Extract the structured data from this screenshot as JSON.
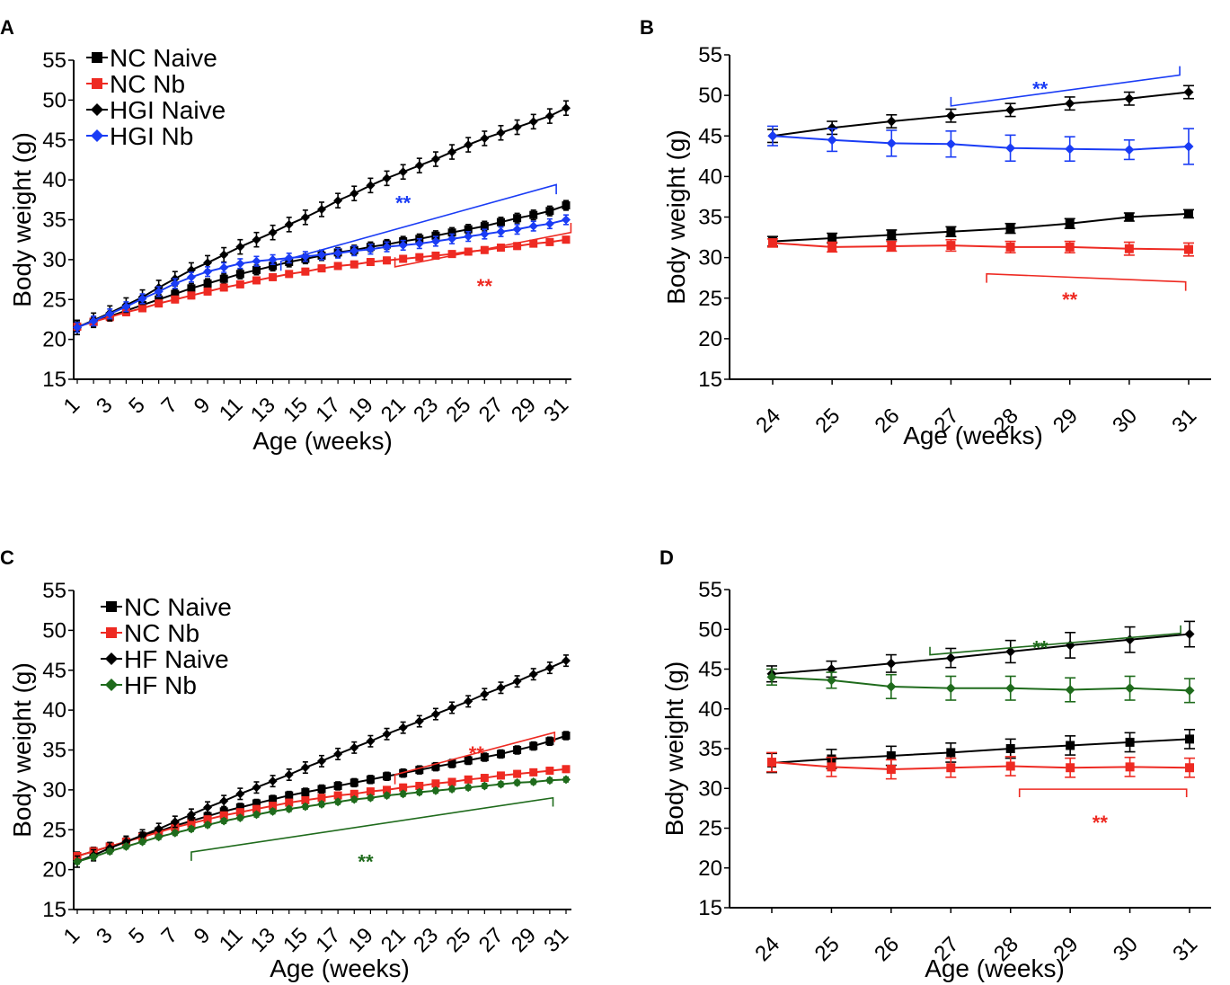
{
  "chart_data": [
    {
      "id": "A",
      "type": "line",
      "panel_label": "A",
      "xlabel": "Age (weeks)",
      "ylabel": "Body weight (g)",
      "ylim": [
        15,
        55
      ],
      "yticks": [
        15,
        20,
        25,
        30,
        35,
        40,
        45,
        50,
        55
      ],
      "xlim": [
        1,
        31
      ],
      "xticks": [
        1,
        3,
        5,
        7,
        9,
        11,
        13,
        15,
        17,
        19,
        21,
        23,
        25,
        27,
        29,
        31
      ],
      "legend": [
        "NC Naive",
        "NC Nb",
        "HGI Naive",
        "HGI Nb"
      ],
      "series": [
        {
          "name": "NC Naive",
          "color": "#000000",
          "marker": "square",
          "x_start": 1,
          "values": [
            21.6,
            22.2,
            22.9,
            23.6,
            24.3,
            25.0,
            25.7,
            26.4,
            27.0,
            27.6,
            28.2,
            28.7,
            29.2,
            29.7,
            30.1,
            30.5,
            30.9,
            31.2,
            31.6,
            31.9,
            32.3,
            32.6,
            33.0,
            33.4,
            33.8,
            34.2,
            34.7,
            35.2,
            35.6,
            36.1,
            36.8
          ],
          "err": 0.6
        },
        {
          "name": "NC Nb",
          "color": "#ee2a22",
          "marker": "square",
          "x_start": 1,
          "values": [
            21.6,
            22.2,
            22.8,
            23.4,
            23.9,
            24.5,
            25.0,
            25.5,
            26.0,
            26.5,
            26.9,
            27.4,
            27.8,
            28.2,
            28.5,
            28.9,
            29.2,
            29.4,
            29.7,
            29.9,
            30.1,
            30.3,
            30.5,
            30.7,
            31.0,
            31.2,
            31.5,
            31.7,
            32.0,
            32.2,
            32.5
          ],
          "err": 0.4
        },
        {
          "name": "HGI Naive",
          "color": "#000000",
          "marker": "diamond",
          "x_start": 1,
          "values": [
            21.5,
            22.4,
            23.3,
            24.3,
            25.3,
            26.5,
            27.6,
            28.7,
            29.6,
            30.6,
            31.6,
            32.5,
            33.4,
            34.4,
            35.3,
            36.3,
            37.4,
            38.3,
            39.3,
            40.2,
            41.0,
            41.8,
            42.6,
            43.5,
            44.4,
            45.2,
            45.9,
            46.6,
            47.3,
            48.0,
            49.0
          ],
          "err": 0.9
        },
        {
          "name": "HGI Nb",
          "color": "#1a3cf5",
          "marker": "diamond",
          "x_start": 1,
          "values": [
            21.5,
            22.3,
            23.2,
            24.1,
            25.1,
            26.0,
            27.0,
            27.8,
            28.5,
            29.0,
            29.5,
            29.8,
            30.0,
            30.2,
            30.4,
            30.6,
            30.8,
            31.1,
            31.3,
            31.6,
            31.8,
            32.0,
            32.3,
            32.6,
            32.9,
            33.2,
            33.5,
            33.8,
            34.2,
            34.5,
            35.0
          ],
          "err": 0.6
        }
      ],
      "annotations": [
        {
          "text": "**",
          "color": "#1a3cf5",
          "bracket": {
            "x1": 13.5,
            "x2": 30.4,
            "y_start": 29.8,
            "y_end": 39.4,
            "tick": 1.2
          },
          "label_at": [
            21,
            37.8
          ]
        },
        {
          "text": "**",
          "color": "#ee2a22",
          "bracket": {
            "x1": 20.5,
            "x2": 31.3,
            "y_start": 29.1,
            "y_end": 33.4,
            "tick": -1.2
          },
          "label_at": [
            26,
            27.4
          ]
        }
      ]
    },
    {
      "id": "B",
      "type": "line",
      "panel_label": "B",
      "xlabel": "Age (weeks)",
      "ylabel": "Body weight (g)",
      "ylim": [
        15,
        55
      ],
      "yticks": [
        15,
        20,
        25,
        30,
        35,
        40,
        45,
        50,
        55
      ],
      "categories": [
        "24",
        "25",
        "26",
        "27",
        "28",
        "29",
        "30",
        "31"
      ],
      "series": [
        {
          "name": "HGI Naive",
          "color": "#000000",
          "marker": "diamond",
          "values": [
            45.0,
            46.0,
            46.8,
            47.5,
            48.2,
            49.0,
            49.6,
            50.4
          ],
          "err": [
            0.8,
            0.8,
            0.8,
            0.8,
            0.8,
            0.8,
            0.8,
            0.8
          ]
        },
        {
          "name": "HGI Nb",
          "color": "#1a3cf5",
          "marker": "diamond",
          "values": [
            45.0,
            44.5,
            44.1,
            44.0,
            43.5,
            43.4,
            43.3,
            43.7
          ],
          "err": [
            1.2,
            1.4,
            1.6,
            1.6,
            1.6,
            1.5,
            1.2,
            2.2
          ]
        },
        {
          "name": "NC Naive",
          "color": "#000000",
          "marker": "square",
          "values": [
            32.0,
            32.4,
            32.8,
            33.2,
            33.6,
            34.2,
            35.0,
            35.4
          ],
          "err": [
            0.6,
            0.6,
            0.6,
            0.6,
            0.6,
            0.6,
            0.5,
            0.5
          ]
        },
        {
          "name": "NC Nb",
          "color": "#ee2a22",
          "marker": "square",
          "values": [
            31.8,
            31.3,
            31.4,
            31.5,
            31.3,
            31.3,
            31.1,
            31.0
          ],
          "err": [
            0.5,
            0.6,
            0.6,
            0.7,
            0.7,
            0.7,
            0.8,
            0.8
          ]
        }
      ],
      "annotations": [
        {
          "text": "**",
          "color": "#1a3cf5",
          "bracket": {
            "x1": 3.0,
            "x2": 6.85,
            "y_start": 48.7,
            "y_end": 52.5,
            "tick": -1.1
          },
          "label_at": [
            4.5,
            51.5
          ]
        },
        {
          "text": "**",
          "color": "#ee2a22",
          "bracket": {
            "x1": 3.6,
            "x2": 6.95,
            "y_start": 28.0,
            "y_end": 27.0,
            "tick": 1.1
          },
          "label_at": [
            5.0,
            25.5
          ]
        }
      ]
    },
    {
      "id": "C",
      "type": "line",
      "panel_label": "C",
      "xlabel": "Age (weeks)",
      "ylabel": "Body weight (g)",
      "ylim": [
        15,
        55
      ],
      "yticks": [
        15,
        20,
        25,
        30,
        35,
        40,
        45,
        50,
        55
      ],
      "xlim": [
        1,
        31
      ],
      "xticks": [
        1,
        3,
        5,
        7,
        9,
        11,
        13,
        15,
        17,
        19,
        21,
        23,
        25,
        27,
        29,
        31
      ],
      "legend": [
        "NC Naive",
        "NC Nb",
        "HF Naive",
        "HF Nb"
      ],
      "series": [
        {
          "name": "NC Naive",
          "color": "#000000",
          "marker": "square",
          "x_start": 1,
          "values": [
            21.7,
            22.3,
            22.9,
            23.5,
            24.2,
            24.8,
            25.5,
            26.1,
            26.7,
            27.3,
            27.8,
            28.3,
            28.8,
            29.3,
            29.7,
            30.1,
            30.5,
            30.9,
            31.3,
            31.7,
            32.1,
            32.5,
            32.9,
            33.3,
            33.7,
            34.1,
            34.5,
            35.0,
            35.5,
            36.1,
            36.8
          ],
          "err": 0.5
        },
        {
          "name": "NC Nb",
          "color": "#ee2a22",
          "marker": "square",
          "x_start": 1,
          "values": [
            21.7,
            22.3,
            22.9,
            23.5,
            24.1,
            24.7,
            25.3,
            25.8,
            26.3,
            26.8,
            27.2,
            27.6,
            28.0,
            28.4,
            28.7,
            29.0,
            29.3,
            29.5,
            29.8,
            30.0,
            30.3,
            30.5,
            30.8,
            31.0,
            31.3,
            31.5,
            31.8,
            32.0,
            32.2,
            32.4,
            32.6
          ],
          "err": 0.4
        },
        {
          "name": "HF Naive",
          "color": "#000000",
          "marker": "diamond",
          "x_start": 1,
          "values": [
            21.0,
            21.8,
            22.7,
            23.5,
            24.3,
            25.1,
            26.0,
            26.9,
            27.8,
            28.6,
            29.5,
            30.3,
            31.1,
            31.9,
            32.8,
            33.6,
            34.5,
            35.3,
            36.1,
            37.0,
            37.8,
            38.6,
            39.5,
            40.3,
            41.1,
            42.0,
            42.8,
            43.6,
            44.5,
            45.3,
            46.2
          ],
          "err": 0.7
        },
        {
          "name": "HF Nb",
          "color": "#1f6b1c",
          "marker": "diamond",
          "x_start": 1,
          "values": [
            21.0,
            21.6,
            22.3,
            22.9,
            23.5,
            24.1,
            24.6,
            25.1,
            25.6,
            26.1,
            26.5,
            26.9,
            27.3,
            27.6,
            27.9,
            28.2,
            28.5,
            28.8,
            29.0,
            29.3,
            29.5,
            29.7,
            29.9,
            30.1,
            30.3,
            30.5,
            30.7,
            30.9,
            31.0,
            31.2,
            31.3
          ],
          "err": 0.3
        }
      ],
      "annotations": [
        {
          "text": "**",
          "color": "#ee2a22",
          "bracket": {
            "x1": 20.5,
            "x2": 30.3,
            "y_start": 31.9,
            "y_end": 37.2,
            "tick": 1.2
          },
          "label_at": [
            25.5,
            35.3
          ]
        },
        {
          "text": "**",
          "color": "#1f6b1c",
          "bracket": {
            "x1": 8.0,
            "x2": 30.2,
            "y_start": 22.2,
            "y_end": 29.0,
            "tick": 1.1
          },
          "label_at": [
            18.7,
            21.7
          ]
        }
      ]
    },
    {
      "id": "D",
      "type": "line",
      "panel_label": "D",
      "xlabel": "Age (weeks)",
      "ylabel": "Body weight (g)",
      "ylim": [
        15,
        55
      ],
      "yticks": [
        15,
        20,
        25,
        30,
        35,
        40,
        45,
        50,
        55
      ],
      "categories": [
        "24",
        "25",
        "26",
        "27",
        "28",
        "29",
        "30",
        "31"
      ],
      "series": [
        {
          "name": "HF Naive",
          "color": "#000000",
          "marker": "diamond",
          "values": [
            44.4,
            45.0,
            45.7,
            46.4,
            47.2,
            48.0,
            48.7,
            49.4
          ],
          "err": [
            1.0,
            1.0,
            1.1,
            1.2,
            1.4,
            1.6,
            1.6,
            1.6
          ]
        },
        {
          "name": "HF Nb",
          "color": "#1f6b1c",
          "marker": "diamond",
          "values": [
            44.0,
            43.6,
            42.8,
            42.6,
            42.6,
            42.4,
            42.6,
            42.3
          ],
          "err": [
            1.0,
            1.0,
            1.5,
            1.5,
            1.5,
            1.5,
            1.5,
            1.5
          ]
        },
        {
          "name": "NC Naive",
          "color": "#000000",
          "marker": "square",
          "values": [
            33.2,
            33.7,
            34.1,
            34.5,
            35.0,
            35.4,
            35.8,
            36.2
          ],
          "err": [
            1.2,
            1.2,
            1.2,
            1.2,
            1.2,
            1.2,
            1.2,
            1.2
          ]
        },
        {
          "name": "NC Nb",
          "color": "#ee2a22",
          "marker": "square",
          "values": [
            33.3,
            32.7,
            32.4,
            32.6,
            32.8,
            32.6,
            32.7,
            32.6
          ],
          "err": [
            1.2,
            1.2,
            1.2,
            1.2,
            1.2,
            1.2,
            1.2,
            1.2
          ]
        }
      ],
      "annotations": [
        {
          "text": "**",
          "color": "#1f6b1c",
          "bracket": {
            "x1": 2.65,
            "x2": 6.85,
            "y_start": 46.8,
            "y_end": 49.5,
            "tick": -1.0
          },
          "label_at": [
            4.5,
            48.4
          ]
        },
        {
          "text": "**",
          "color": "#ee2a22",
          "bracket": {
            "x1": 4.15,
            "x2": 6.95,
            "y_start": 29.9,
            "y_end": 29.9,
            "tick": 1.0
          },
          "label_at": [
            5.5,
            26.4
          ]
        }
      ]
    }
  ]
}
